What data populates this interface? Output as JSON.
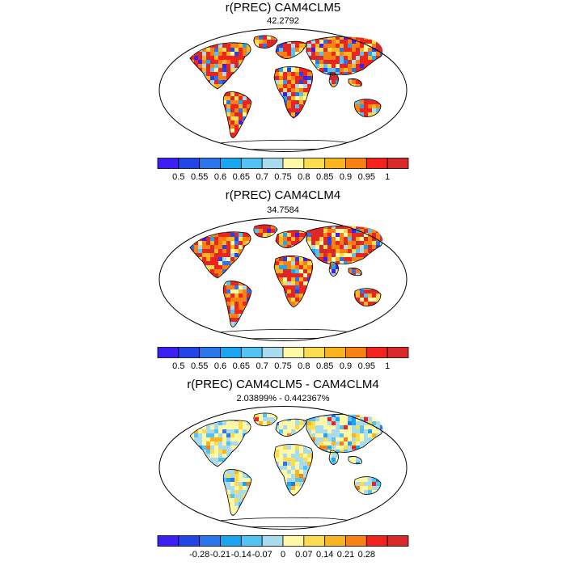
{
  "panels": [
    {
      "title": "r(PREC) CAM4CLM5",
      "subtitle": "42.2792",
      "colorbar": {
        "colors": [
          "#3b1ff5",
          "#2245e8",
          "#2a74ec",
          "#1aa6f0",
          "#52c3f2",
          "#a8dbee",
          "#fff8a6",
          "#fbdc50",
          "#f9b51f",
          "#f88112",
          "#f4221c",
          "#d8282a"
        ],
        "ticks": [
          "0.5",
          "0.55",
          "0.6",
          "0.65",
          "0.7",
          "0.75",
          "0.8",
          "0.85",
          "0.9",
          "0.95",
          "1"
        ]
      }
    },
    {
      "title": "r(PREC) CAM4CLM4",
      "subtitle": "34.7584",
      "colorbar": {
        "colors": [
          "#3b1ff5",
          "#2245e8",
          "#2a74ec",
          "#1aa6f0",
          "#52c3f2",
          "#a8dbee",
          "#fff8a6",
          "#fbdc50",
          "#f9b51f",
          "#f88112",
          "#f4221c",
          "#d8282a"
        ],
        "ticks": [
          "0.5",
          "0.55",
          "0.6",
          "0.65",
          "0.7",
          "0.75",
          "0.8",
          "0.85",
          "0.9",
          "0.95",
          "1"
        ]
      }
    },
    {
      "title": "r(PREC) CAM4CLM5 - CAM4CLM4",
      "subtitle": "2.03899% - 0.442367%",
      "colorbar": {
        "colors": [
          "#3b1ff5",
          "#2245e8",
          "#2a74ec",
          "#1aa6f0",
          "#52c3f2",
          "#a8dbee",
          "#fff8a6",
          "#fbdc50",
          "#f9b51f",
          "#f88112",
          "#f4221c",
          "#d8282a"
        ],
        "ticks": [
          "-0.28",
          "-0.21",
          "-0.14",
          "-0.07",
          "0",
          "0.07",
          "0.14",
          "0.21",
          "0.28"
        ]
      }
    }
  ]
}
